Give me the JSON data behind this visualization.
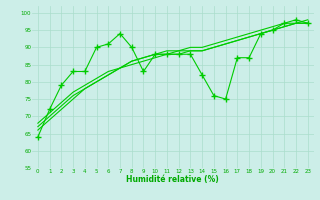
{
  "bg_color": "#cceee8",
  "grid_color": "#aaddcc",
  "line_color": "#00cc00",
  "marker_color": "#00cc00",
  "xlabel": "Humidité relative (%)",
  "xlabel_color": "#00aa00",
  "tick_color": "#00aa00",
  "ylim": [
    55,
    102
  ],
  "xlim": [
    -0.5,
    23.5
  ],
  "yticks": [
    55,
    60,
    65,
    70,
    75,
    80,
    85,
    90,
    95,
    100
  ],
  "xticks": [
    0,
    1,
    2,
    3,
    4,
    5,
    6,
    7,
    8,
    9,
    10,
    11,
    12,
    13,
    14,
    15,
    16,
    17,
    18,
    19,
    20,
    21,
    22,
    23
  ],
  "series_jagged": [
    64,
    72,
    79,
    83,
    83,
    90,
    91,
    94,
    90,
    83,
    88,
    88,
    88,
    88,
    82,
    76,
    75,
    87,
    87,
    94,
    95,
    97,
    98,
    97
  ],
  "trend1": [
    66,
    69,
    72,
    75,
    78,
    80,
    82,
    84,
    86,
    87,
    88,
    88,
    89,
    89,
    89,
    90,
    91,
    92,
    93,
    94,
    95,
    96,
    97,
    97
  ],
  "trend2": [
    67,
    70,
    73,
    76,
    78,
    80,
    82,
    84,
    85,
    86,
    87,
    88,
    88,
    89,
    89,
    90,
    91,
    92,
    93,
    94,
    95,
    96,
    97,
    97
  ],
  "trend3": [
    68,
    71,
    74,
    77,
    79,
    81,
    83,
    84,
    86,
    87,
    88,
    89,
    89,
    90,
    90,
    91,
    92,
    93,
    94,
    95,
    96,
    97,
    97,
    98
  ]
}
